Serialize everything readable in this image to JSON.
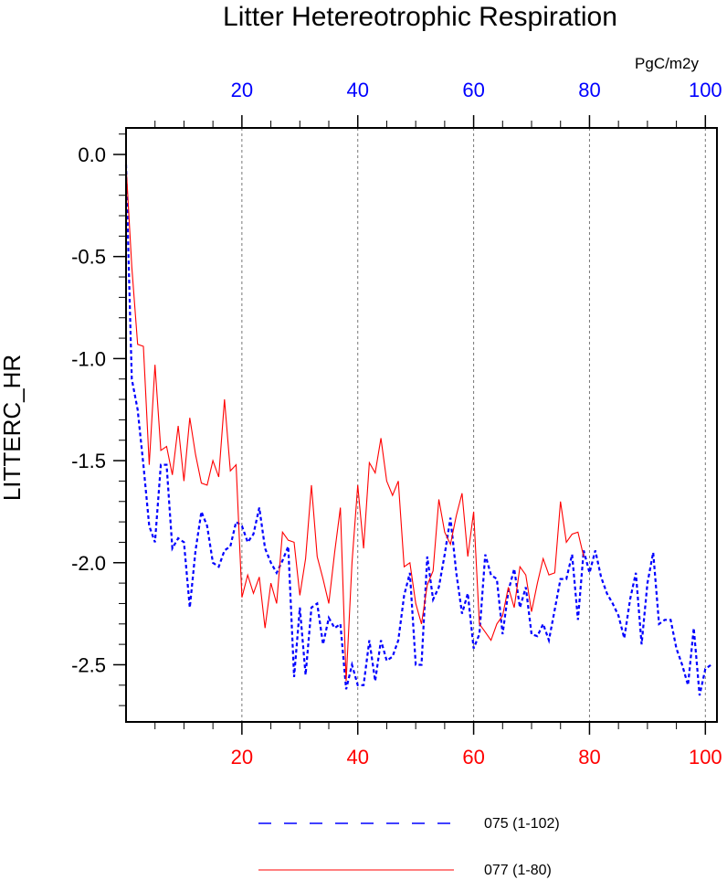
{
  "chart_data": {
    "type": "line",
    "title": "Litter Hetereotrophic Respiration",
    "units": "PgC/m2y",
    "ylabel": "LITTERC_HR",
    "xlim": [
      0,
      102
    ],
    "ylim": [
      -2.78,
      0.13
    ],
    "yticks": [
      0.0,
      -0.5,
      -1.0,
      -1.5,
      -2.0,
      -2.5
    ],
    "ytick_labels": [
      "0.0",
      "-0.5",
      "-1.0",
      "-1.5",
      "-2.0",
      "-2.5"
    ],
    "top_axis": {
      "color": "#0000ff",
      "ticks": [
        20,
        40,
        60,
        80,
        100
      ],
      "labels": [
        "20",
        "40",
        "60",
        "80",
        "100"
      ]
    },
    "bottom_axis": {
      "color": "#ff0000",
      "ticks": [
        20,
        40,
        60,
        80,
        100
      ],
      "labels": [
        "20",
        "40",
        "60",
        "80",
        "100"
      ]
    },
    "grid_x": [
      20,
      40,
      60,
      80,
      100
    ],
    "series": [
      {
        "name": "075 (1-102)",
        "color": "#0000ff",
        "dash": "dashed",
        "x_start": 0,
        "values": [
          -0.05,
          -1.1,
          -1.25,
          -1.52,
          -1.82,
          -1.9,
          -1.52,
          -1.52,
          -1.93,
          -1.88,
          -1.9,
          -2.22,
          -1.94,
          -1.75,
          -1.82,
          -2.0,
          -2.02,
          -1.94,
          -1.92,
          -1.8,
          -1.82,
          -1.9,
          -1.86,
          -1.73,
          -1.93,
          -2.0,
          -2.05,
          -1.99,
          -1.92,
          -2.56,
          -2.22,
          -2.55,
          -2.22,
          -2.2,
          -2.4,
          -2.27,
          -2.32,
          -2.3,
          -2.62,
          -2.5,
          -2.6,
          -2.6,
          -2.38,
          -2.58,
          -2.38,
          -2.48,
          -2.46,
          -2.38,
          -2.16,
          -2.05,
          -2.5,
          -2.5,
          -1.97,
          -2.18,
          -2.12,
          -1.96,
          -1.78,
          -2.05,
          -2.25,
          -2.15,
          -2.42,
          -2.35,
          -1.96,
          -2.06,
          -2.08,
          -2.35,
          -2.14,
          -2.03,
          -2.22,
          -2.12,
          -2.35,
          -2.36,
          -2.3,
          -2.38,
          -2.23,
          -2.08,
          -2.08,
          -1.96,
          -2.28,
          -1.94,
          -2.05,
          -1.94,
          -2.07,
          -2.15,
          -2.2,
          -2.26,
          -2.37,
          -2.18,
          -2.05,
          -2.4,
          -2.1,
          -1.95,
          -2.3,
          -2.28,
          -2.28,
          -2.42,
          -2.5,
          -2.6,
          -2.32,
          -2.65,
          -2.52,
          -2.5
        ],
        "legend": "075 (1-102)"
      },
      {
        "name": "077 (1-80)",
        "color": "#ff0000",
        "dash": "solid",
        "x_start": 0,
        "values": [
          -0.05,
          -0.55,
          -0.93,
          -0.94,
          -1.52,
          -1.03,
          -1.45,
          -1.43,
          -1.57,
          -1.33,
          -1.6,
          -1.29,
          -1.47,
          -1.61,
          -1.62,
          -1.5,
          -1.58,
          -1.2,
          -1.55,
          -1.52,
          -2.17,
          -2.06,
          -2.15,
          -2.07,
          -2.32,
          -2.1,
          -2.2,
          -1.85,
          -1.89,
          -1.9,
          -2.16,
          -1.98,
          -1.62,
          -1.97,
          -2.08,
          -2.2,
          -1.95,
          -1.73,
          -2.58,
          -2.0,
          -1.62,
          -1.93,
          -1.51,
          -1.56,
          -1.39,
          -1.6,
          -1.67,
          -1.6,
          -2.02,
          -2.0,
          -2.2,
          -2.3,
          -2.11,
          -2.04,
          -1.69,
          -1.85,
          -1.91,
          -1.77,
          -1.66,
          -1.97,
          -1.75,
          -2.3,
          -2.34,
          -2.38,
          -2.3,
          -2.26,
          -2.12,
          -2.22,
          -2.02,
          -2.06,
          -2.24,
          -2.1,
          -1.98,
          -2.06,
          -2.05,
          -1.7,
          -1.9,
          -1.86,
          -1.85,
          -1.97
        ],
        "legend": "077 (1-80)"
      }
    ]
  }
}
